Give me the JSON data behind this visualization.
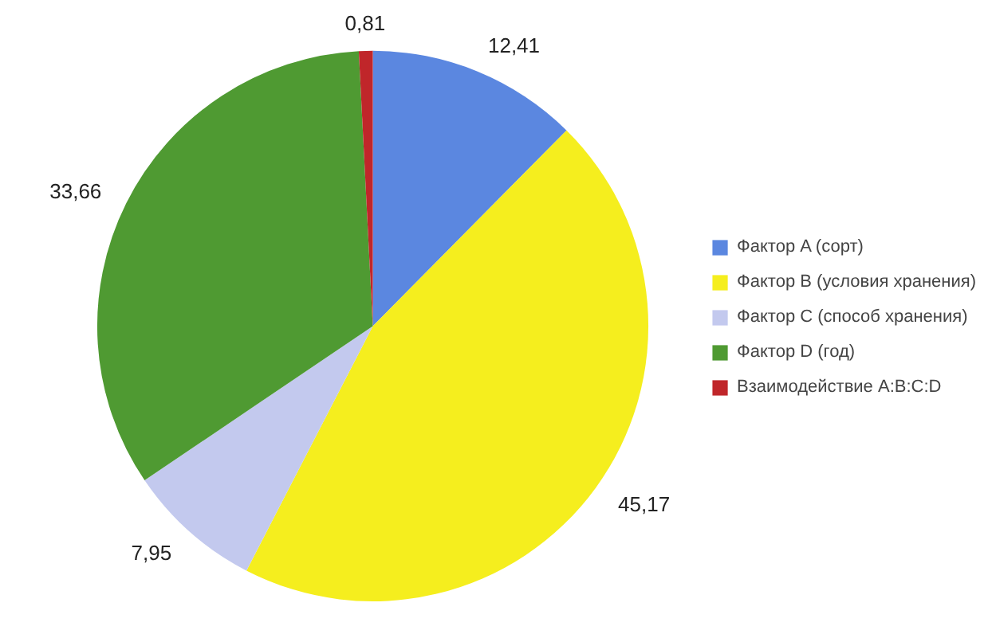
{
  "chart_data": {
    "type": "pie",
    "categories": [
      "Фактор A (сорт)",
      "Фактор B (условия хранения)",
      "Фактор C (способ хранения)",
      "Фактор D (год)",
      "Взаимодействие A:B:C:D"
    ],
    "values": [
      12.41,
      45.17,
      7.95,
      33.66,
      0.81
    ],
    "value_labels": [
      "12,41",
      "45,17",
      "7,95",
      "33,66",
      "0,81"
    ],
    "colors": [
      "#5b87e0",
      "#f5ee1e",
      "#c3c9ee",
      "#4f9a32",
      "#c0262a"
    ],
    "legend": "right"
  }
}
